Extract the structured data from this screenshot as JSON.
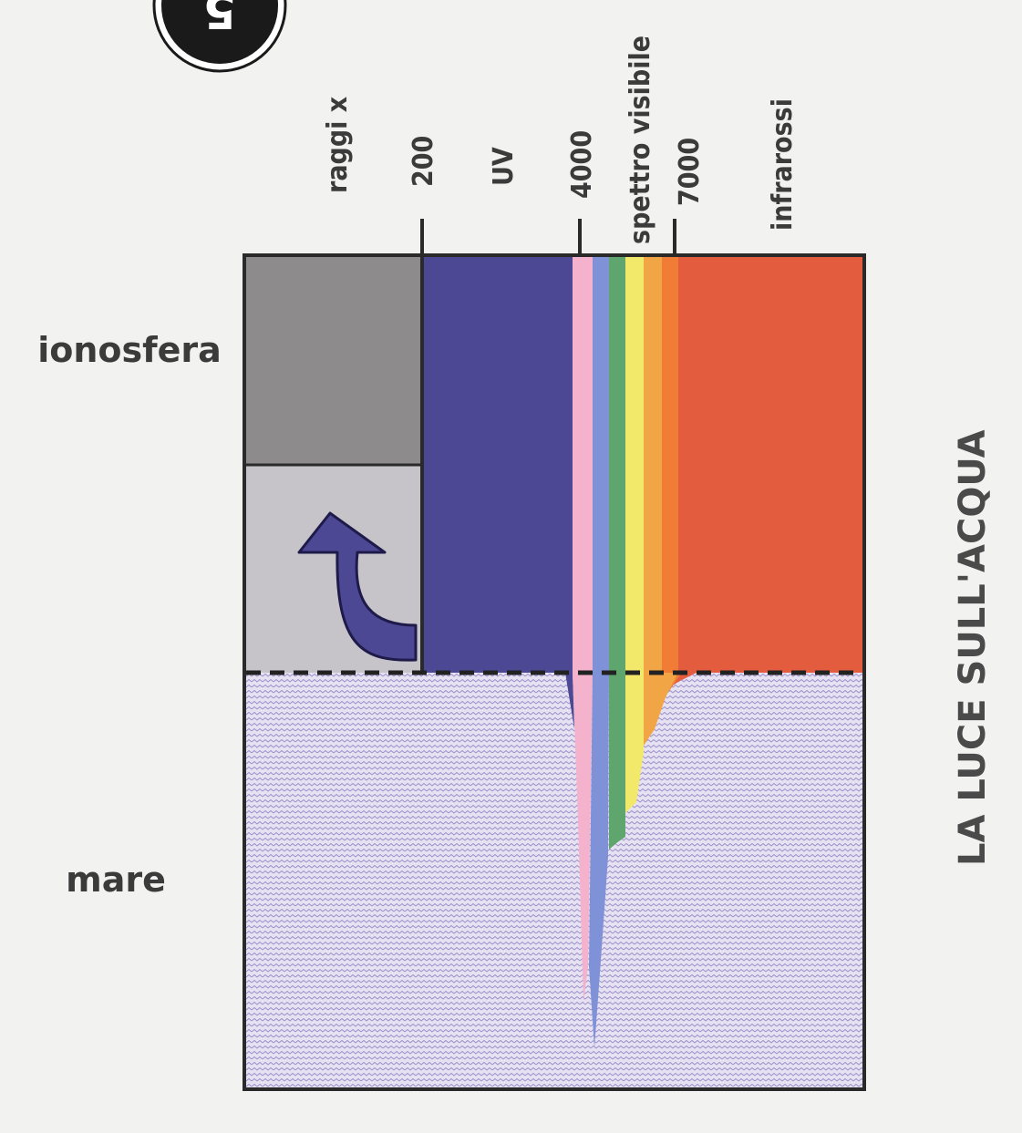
{
  "badge": {
    "text": "5"
  },
  "side_labels": {
    "ionosfera": "ionosfera",
    "mare": "mare"
  },
  "spectrum_labels": {
    "xray": "raggi x",
    "tick_200": "200",
    "uv": "UV",
    "tick_4000": "4000",
    "visible": "spettro visibile",
    "tick_7000": "7000",
    "infrared": "infrarossi"
  },
  "title": "LA LUCE SULL'ACQUA",
  "colors": {
    "grey_dark": "#8e8b8d",
    "grey_light": "#c6c4c9",
    "uv": "#4d4893",
    "pink": "#f4b2cc",
    "blue": "#7f92d8",
    "green": "#5ea66e",
    "yellow": "#f2e96a",
    "orange": "#f2a544",
    "deep_orange": "#f07c36",
    "infrared": "#e25c3d",
    "sea": "#e7e2f2",
    "sea_wave": "#9a8fca",
    "frame": "#2a2a2a"
  }
}
